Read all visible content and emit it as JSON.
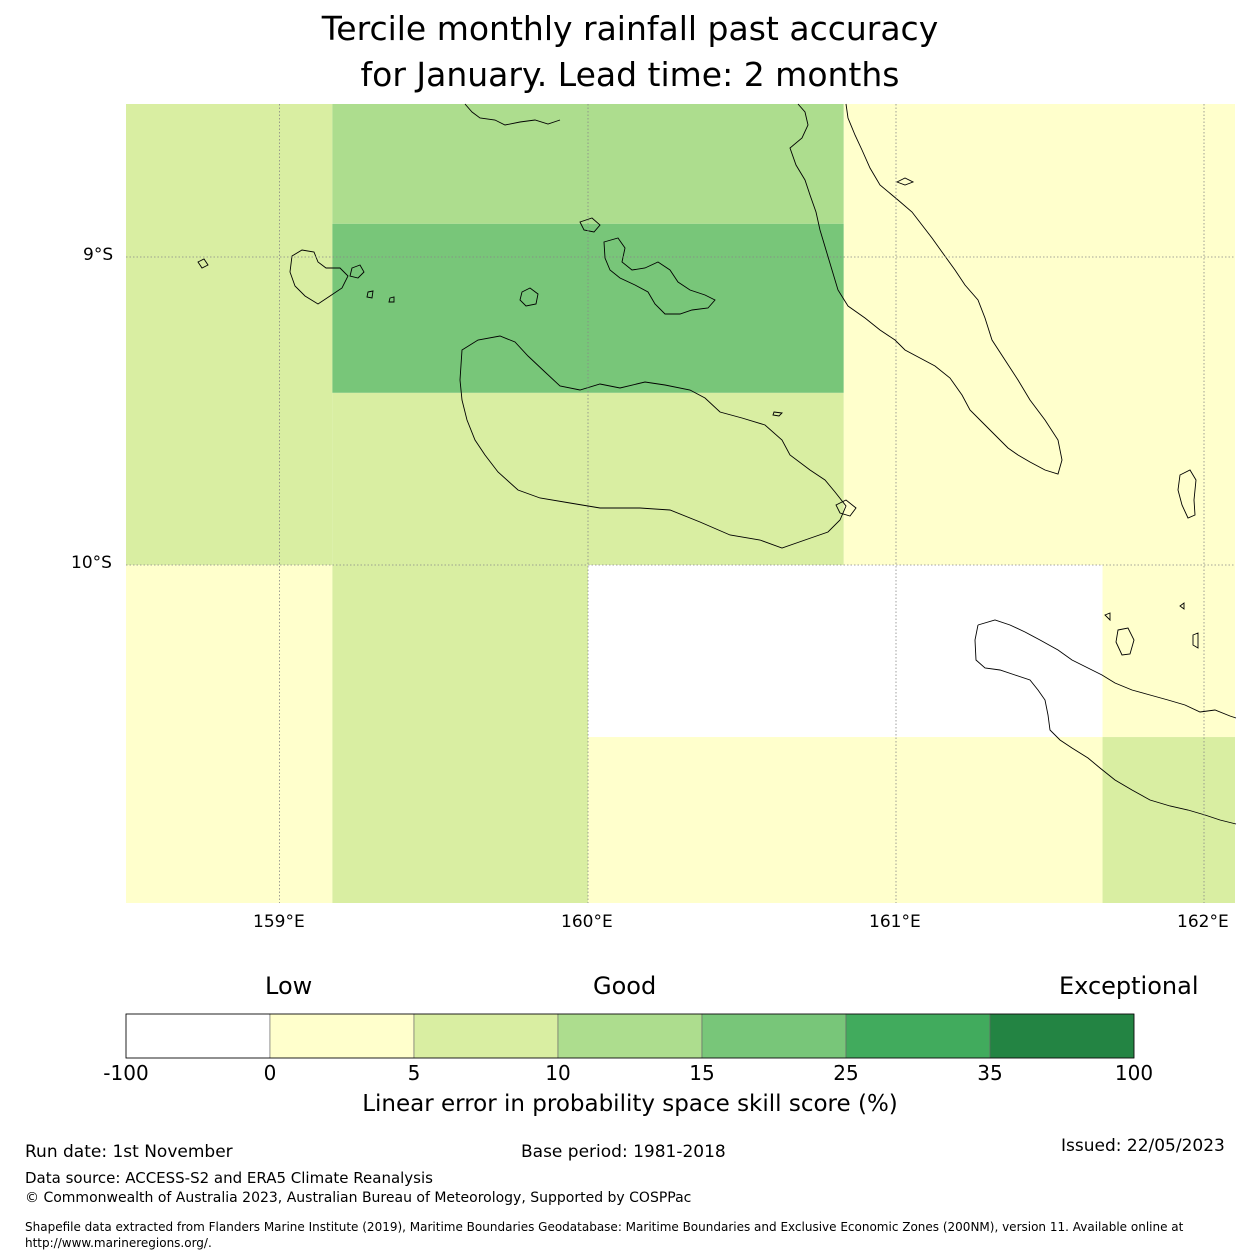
{
  "title": {
    "line1": "Tercile monthly rainfall past accuracy",
    "line2": "for January. Lead time: 2 months"
  },
  "map": {
    "lat_labels": [
      "9°S",
      "10°S"
    ],
    "lon_labels": [
      "159°E",
      "160°E",
      "161°E",
      "162°E"
    ],
    "coastline_color": "#000000",
    "cells": [
      {
        "lon": [
          158.5,
          159.17
        ],
        "lat": [
          -8.5,
          -10.0
        ],
        "category": "5-10",
        "color": "#d9eea2"
      },
      {
        "lon": [
          159.17,
          160.83
        ],
        "lat": [
          -8.5,
          -8.89
        ],
        "category": "10-15",
        "color": "#addd8e"
      },
      {
        "lon": [
          159.17,
          160.83
        ],
        "lat": [
          -8.89,
          -9.44
        ],
        "category": "15-25",
        "color": "#78c679"
      },
      {
        "lon": [
          159.17,
          160.83
        ],
        "lat": [
          -9.44,
          -10.0
        ],
        "category": "5-10",
        "color": "#d9eea2"
      },
      {
        "lon": [
          160.83,
          162.1
        ],
        "lat": [
          -8.5,
          -10.0
        ],
        "category": "0-5",
        "color": "#ffffcc"
      },
      {
        "lon": [
          158.5,
          159.17
        ],
        "lat": [
          -10.0,
          -11.1
        ],
        "category": "0-5",
        "color": "#ffffcc"
      },
      {
        "lon": [
          159.17,
          160.0
        ],
        "lat": [
          -10.0,
          -11.1
        ],
        "category": "5-10",
        "color": "#d9eea2"
      },
      {
        "lon": [
          160.0,
          161.67
        ],
        "lat": [
          -10.0,
          -10.56
        ],
        "category": "-100-0",
        "color": "#ffffff"
      },
      {
        "lon": [
          161.67,
          162.1
        ],
        "lat": [
          -10.0,
          -10.56
        ],
        "category": "0-5",
        "color": "#ffffcc"
      },
      {
        "lon": [
          160.0,
          161.67
        ],
        "lat": [
          -10.56,
          -11.1
        ],
        "category": "0-5",
        "color": "#ffffcc"
      },
      {
        "lon": [
          161.67,
          162.1
        ],
        "lat": [
          -10.56,
          -11.1
        ],
        "category": "5-10",
        "color": "#d9eea2"
      }
    ]
  },
  "colorbar": {
    "low_label": "Low",
    "good_label": "Good",
    "exceptional_label": "Exceptional",
    "ticks": [
      "-100",
      "0",
      "5",
      "10",
      "15",
      "25",
      "35",
      "100"
    ],
    "colors": [
      "#ffffff",
      "#ffffcc",
      "#d9eea2",
      "#addd8e",
      "#78c679",
      "#41ab5d",
      "#238443"
    ],
    "label": "Linear error in probability space skill score (%)"
  },
  "footer": {
    "run_date": "Run date: 1st November",
    "base_period": "Base period: 1981-2018",
    "issued": "Issued: 22/05/2023",
    "data_source": "Data source: ACCESS-S2 and ERA5 Climate Reanalysis",
    "copyright": "© Commonwealth of Australia 2023, Australian Bureau of Meteorology, Supported by COSPPac",
    "shapefile": "Shapefile data extracted from Flanders Marine Institute (2019), Maritime Boundaries Geodatabase: Maritime Boundaries and Exclusive Economic Zones (200NM), version 11. Available online at http://www.marineregions.org/."
  }
}
